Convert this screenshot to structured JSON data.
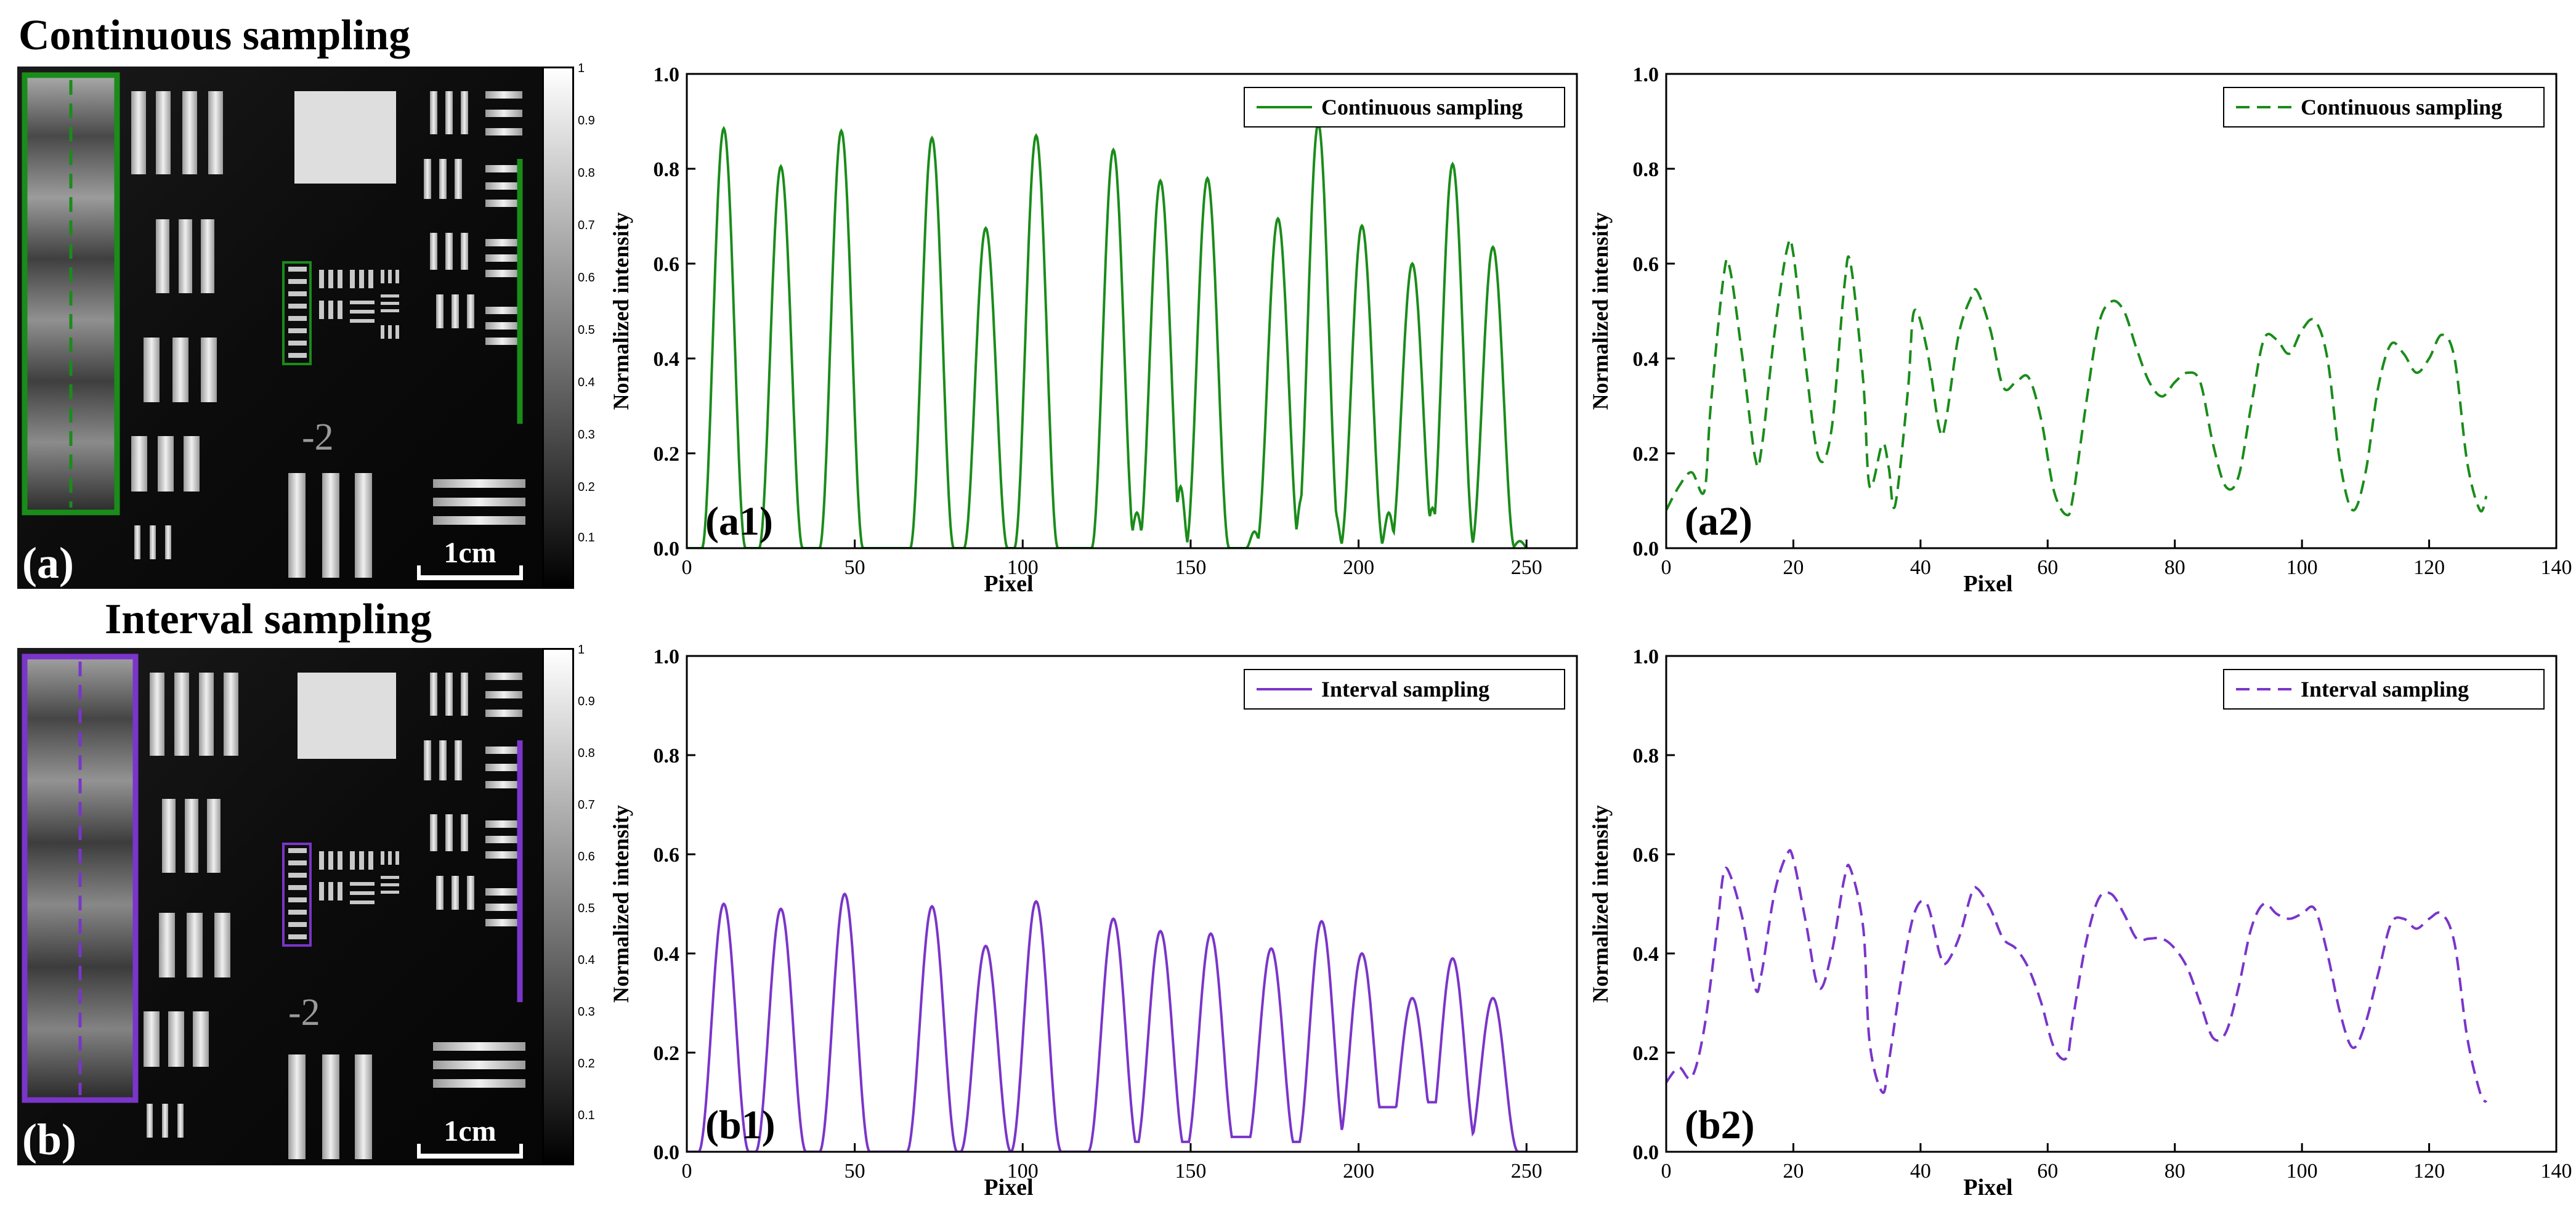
{
  "figure": {
    "title_top": "Continuous sampling",
    "title_bottom": "Interval sampling",
    "panel_a_label": "(a)",
    "panel_b_label": "(b)",
    "scale_bar": "1cm",
    "target_label": "-2",
    "colorbar_ticks": [
      "1",
      "0.9",
      "0.8",
      "0.7",
      "0.6",
      "0.5",
      "0.4",
      "0.3",
      "0.2",
      "0.1"
    ],
    "colors": {
      "green": "#1a8c1a",
      "purple": "#7a35c9"
    }
  },
  "chart_data": [
    {
      "id": "a1",
      "label": "(a1)",
      "type": "line",
      "style": "solid",
      "color": "#1a8c1a",
      "xlabel": "Pixel",
      "ylabel": "Normalized intensity",
      "xlim": [
        0,
        265
      ],
      "ylim": [
        0,
        1.0
      ],
      "xticks": [
        0,
        50,
        100,
        150,
        200,
        250
      ],
      "yticks": [
        0.0,
        0.2,
        0.4,
        0.6,
        0.8,
        1.0
      ],
      "ytick_labels": [
        "0.0",
        "0.2",
        "0.4",
        "0.6",
        "0.8",
        "1.0"
      ],
      "legend": "Continuous sampling",
      "legend_position": "top-right",
      "peaks": [
        [
          11,
          0.885
        ],
        [
          28,
          0.805
        ],
        [
          46,
          0.88
        ],
        [
          73,
          0.865
        ],
        [
          89,
          0.675
        ],
        [
          104,
          0.87
        ],
        [
          127,
          0.84
        ],
        [
          141,
          0.775
        ],
        [
          155,
          0.78
        ],
        [
          176,
          0.695
        ],
        [
          188,
          0.895
        ],
        [
          201,
          0.68
        ],
        [
          216,
          0.6
        ],
        [
          228,
          0.81
        ],
        [
          240,
          0.635
        ]
      ],
      "small_peaks": [
        [
          134,
          0.075
        ],
        [
          147,
          0.13
        ],
        [
          169,
          0.035
        ],
        [
          183,
          0.105
        ],
        [
          193,
          0.075
        ],
        [
          209,
          0.075
        ],
        [
          222,
          0.085
        ],
        [
          248,
          0.015
        ]
      ],
      "peak_half_width": 6.5,
      "baseline": 0.0
    },
    {
      "id": "a2",
      "label": "(a2)",
      "type": "line",
      "style": "dashed",
      "color": "#1a8c1a",
      "xlabel": "Pixel",
      "ylabel": "Normalized intensity",
      "xlim": [
        0,
        140
      ],
      "ylim": [
        0,
        1.0
      ],
      "xticks": [
        0,
        20,
        40,
        60,
        80,
        100,
        120,
        140
      ],
      "yticks": [
        0.0,
        0.2,
        0.4,
        0.6,
        0.8,
        1.0
      ],
      "ytick_labels": [
        "0.0",
        "0.2",
        "0.4",
        "0.6",
        "0.8",
        "1.0"
      ],
      "legend": "Continuous sampling",
      "legend_position": "top-right",
      "x": [
        0,
        2,
        4,
        6,
        7,
        9,
        10,
        12,
        14,
        15,
        17,
        19,
        20,
        22,
        24,
        26,
        28,
        29,
        31,
        32,
        34,
        35,
        36,
        38,
        39,
        41,
        43,
        44,
        46,
        48,
        49,
        51,
        53,
        55,
        57,
        59,
        61,
        63,
        64,
        66,
        68,
        70,
        72,
        74,
        76,
        78,
        80,
        82,
        84,
        86,
        88,
        90,
        92,
        94,
        96,
        98,
        100,
        102,
        104,
        106,
        108,
        110,
        112,
        114,
        116,
        118,
        120,
        122,
        124,
        126,
        128,
        129
      ],
      "y": [
        0.08,
        0.13,
        0.16,
        0.12,
        0.3,
        0.57,
        0.59,
        0.4,
        0.19,
        0.21,
        0.45,
        0.63,
        0.62,
        0.38,
        0.19,
        0.25,
        0.55,
        0.6,
        0.35,
        0.13,
        0.22,
        0.17,
        0.09,
        0.33,
        0.5,
        0.42,
        0.25,
        0.27,
        0.45,
        0.53,
        0.54,
        0.46,
        0.34,
        0.35,
        0.36,
        0.27,
        0.12,
        0.07,
        0.11,
        0.3,
        0.47,
        0.52,
        0.5,
        0.42,
        0.35,
        0.32,
        0.35,
        0.37,
        0.35,
        0.22,
        0.13,
        0.15,
        0.3,
        0.44,
        0.44,
        0.41,
        0.46,
        0.48,
        0.4,
        0.18,
        0.08,
        0.16,
        0.34,
        0.43,
        0.41,
        0.37,
        0.4,
        0.45,
        0.4,
        0.18,
        0.08,
        0.11
      ]
    },
    {
      "id": "b1",
      "label": "(b1)",
      "type": "line",
      "style": "solid",
      "color": "#7a35c9",
      "xlabel": "Pixel",
      "ylabel": "Normalized intensity",
      "xlim": [
        0,
        265
      ],
      "ylim": [
        0,
        1.0
      ],
      "xticks": [
        0,
        50,
        100,
        150,
        200,
        250
      ],
      "yticks": [
        0.0,
        0.2,
        0.4,
        0.6,
        0.8,
        1.0
      ],
      "ytick_labels": [
        "0.0",
        "0.2",
        "0.4",
        "0.6",
        "0.8",
        "1.0"
      ],
      "legend": "Interval sampling",
      "legend_position": "top-right",
      "peaks": [
        [
          11,
          0.5
        ],
        [
          28,
          0.49
        ],
        [
          47,
          0.52
        ],
        [
          73,
          0.495
        ],
        [
          89,
          0.415
        ],
        [
          104,
          0.505
        ],
        [
          127,
          0.47
        ],
        [
          141,
          0.445
        ],
        [
          156,
          0.44
        ],
        [
          174,
          0.41
        ],
        [
          189,
          0.465
        ],
        [
          201,
          0.4
        ],
        [
          216,
          0.31
        ],
        [
          228,
          0.39
        ],
        [
          240,
          0.31
        ]
      ],
      "valley_mins": [
        0.0,
        0.0,
        0.0,
        0.0,
        0.0,
        0.0,
        0.0,
        0.02,
        0.02,
        0.03,
        0.02,
        0.0,
        0.09,
        0.1,
        0.0,
        0.0
      ],
      "peak_half_width": 7.5
    },
    {
      "id": "b2",
      "label": "(b2)",
      "type": "line",
      "style": "dashed",
      "color": "#7a35c9",
      "xlabel": "Pixel",
      "ylabel": "Normalized intensity",
      "xlim": [
        0,
        140
      ],
      "ylim": [
        0,
        1.0
      ],
      "xticks": [
        0,
        20,
        40,
        60,
        80,
        100,
        120,
        140
      ],
      "yticks": [
        0.0,
        0.2,
        0.4,
        0.6,
        0.8,
        1.0
      ],
      "ytick_labels": [
        "0.0",
        "0.2",
        "0.4",
        "0.6",
        "0.8",
        "1.0"
      ],
      "legend": "Interval sampling",
      "legend_position": "top-right",
      "x": [
        0,
        2,
        4,
        6,
        8,
        9,
        10,
        12,
        14,
        15,
        17,
        19,
        20,
        22,
        24,
        26,
        28,
        29,
        31,
        32,
        34,
        35,
        37,
        39,
        41,
        43,
        44,
        46,
        48,
        49,
        51,
        53,
        55,
        57,
        59,
        61,
        63,
        64,
        66,
        68,
        70,
        72,
        74,
        76,
        78,
        80,
        82,
        84,
        86,
        88,
        90,
        92,
        94,
        96,
        98,
        100,
        102,
        104,
        106,
        108,
        110,
        112,
        114,
        116,
        118,
        120,
        122,
        124,
        126,
        128,
        129
      ],
      "y": [
        0.14,
        0.17,
        0.15,
        0.25,
        0.45,
        0.56,
        0.56,
        0.47,
        0.33,
        0.36,
        0.52,
        0.6,
        0.59,
        0.46,
        0.33,
        0.4,
        0.55,
        0.57,
        0.45,
        0.22,
        0.12,
        0.18,
        0.35,
        0.48,
        0.5,
        0.4,
        0.38,
        0.43,
        0.52,
        0.53,
        0.49,
        0.43,
        0.41,
        0.37,
        0.3,
        0.21,
        0.19,
        0.27,
        0.42,
        0.51,
        0.52,
        0.48,
        0.43,
        0.43,
        0.43,
        0.41,
        0.37,
        0.3,
        0.23,
        0.24,
        0.33,
        0.45,
        0.5,
        0.48,
        0.47,
        0.48,
        0.49,
        0.4,
        0.28,
        0.21,
        0.26,
        0.36,
        0.46,
        0.47,
        0.45,
        0.47,
        0.48,
        0.42,
        0.23,
        0.12,
        0.1
      ]
    }
  ]
}
